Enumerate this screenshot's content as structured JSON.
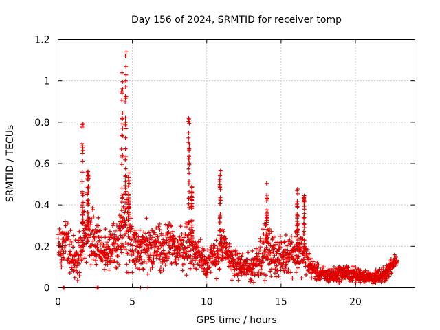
{
  "chart_data": {
    "type": "scatter",
    "title": "Day 156 of 2024, SRMTID for receiver tomp",
    "xlabel": "GPS time / hours",
    "ylabel": "SRMTID / TECUs",
    "xlim": [
      0,
      24
    ],
    "ylim": [
      0,
      1.2
    ],
    "xticks": [
      0,
      5,
      10,
      15,
      20
    ],
    "xtick_labels": [
      "0",
      "5",
      "10",
      "15",
      "20"
    ],
    "yticks": [
      0,
      0.2,
      0.4,
      0.6,
      0.8,
      1.0,
      1.2
    ],
    "ytick_labels": [
      "0",
      "0.2",
      "0.4",
      "0.6",
      "0.8",
      "1",
      "1.2"
    ],
    "grid": true,
    "marker": "plus",
    "color": "#e00000",
    "series": [
      {
        "name": "SRMTID",
        "profile_x": [
          0.0,
          0.3,
          0.5,
          0.8,
          1.0,
          1.3,
          1.6,
          1.8,
          2.0,
          2.5,
          3.0,
          3.5,
          4.0,
          4.3,
          4.5,
          4.8,
          5.2,
          5.6,
          6.0,
          6.5,
          7.0,
          7.5,
          8.0,
          8.5,
          8.8,
          9.2,
          9.6,
          10.0,
          10.5,
          11.0,
          11.5,
          12.0,
          12.5,
          13.0,
          13.5,
          14.0,
          14.5,
          15.0,
          15.5,
          16.0,
          16.5,
          17.0,
          17.5,
          18.0,
          18.5,
          19.0,
          19.5,
          20.0,
          20.5,
          21.0,
          21.5,
          22.0,
          22.5,
          22.8
        ],
        "profile_center": [
          0.22,
          0.2,
          0.26,
          0.18,
          0.15,
          0.16,
          0.2,
          0.22,
          0.25,
          0.22,
          0.18,
          0.17,
          0.2,
          0.27,
          0.3,
          0.25,
          0.2,
          0.18,
          0.2,
          0.21,
          0.19,
          0.2,
          0.19,
          0.2,
          0.22,
          0.17,
          0.16,
          0.12,
          0.14,
          0.2,
          0.15,
          0.11,
          0.1,
          0.09,
          0.15,
          0.19,
          0.16,
          0.14,
          0.17,
          0.18,
          0.17,
          0.1,
          0.07,
          0.06,
          0.06,
          0.07,
          0.07,
          0.06,
          0.06,
          0.05,
          0.05,
          0.06,
          0.12,
          0.13
        ],
        "profile_spread": [
          0.06,
          0.08,
          0.1,
          0.08,
          0.07,
          0.08,
          0.1,
          0.1,
          0.1,
          0.1,
          0.08,
          0.08,
          0.09,
          0.12,
          0.15,
          0.12,
          0.09,
          0.08,
          0.09,
          0.09,
          0.08,
          0.09,
          0.08,
          0.09,
          0.1,
          0.08,
          0.07,
          0.06,
          0.07,
          0.09,
          0.07,
          0.05,
          0.05,
          0.05,
          0.08,
          0.1,
          0.08,
          0.07,
          0.08,
          0.09,
          0.08,
          0.04,
          0.03,
          0.03,
          0.03,
          0.03,
          0.03,
          0.03,
          0.025,
          0.025,
          0.025,
          0.03,
          0.03,
          0.02
        ],
        "spikes": [
          {
            "x": 1.65,
            "peak": 0.82,
            "width": 0.08
          },
          {
            "x": 2.0,
            "peak": 0.58,
            "width": 0.08
          },
          {
            "x": 4.3,
            "peak": 1.1,
            "width": 0.08
          },
          {
            "x": 4.55,
            "peak": 1.15,
            "width": 0.07
          },
          {
            "x": 4.75,
            "peak": 0.56,
            "width": 0.06
          },
          {
            "x": 8.8,
            "peak": 0.86,
            "width": 0.06
          },
          {
            "x": 9.0,
            "peak": 0.49,
            "width": 0.05
          },
          {
            "x": 10.9,
            "peak": 0.57,
            "width": 0.06
          },
          {
            "x": 14.05,
            "peak": 0.53,
            "width": 0.07
          },
          {
            "x": 16.1,
            "peak": 0.49,
            "width": 0.06
          },
          {
            "x": 16.55,
            "peak": 0.46,
            "width": 0.06
          }
        ],
        "zero_points_x": [
          0.35,
          0.4,
          2.55,
          2.65,
          2.7,
          5.55,
          6.05
        ]
      }
    ]
  }
}
